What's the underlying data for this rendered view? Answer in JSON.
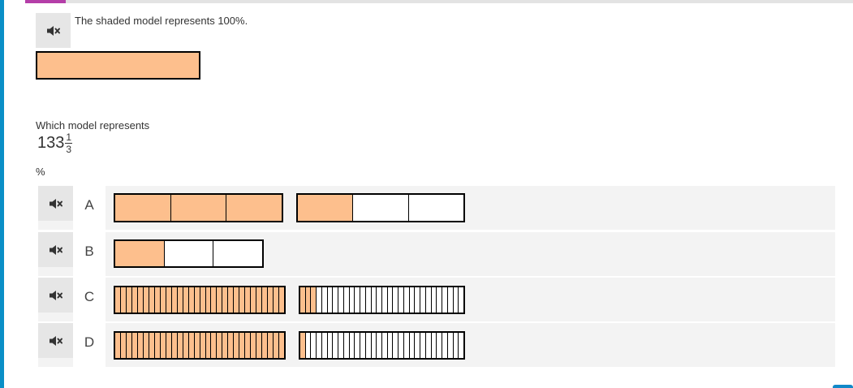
{
  "colors": {
    "shaded": "#fdbf8d",
    "accent": "#0a8fc7",
    "tab_accent": "#b43ea8"
  },
  "prompt": {
    "text": "The shaded model represents 100%.",
    "speaker_icon": "muted-speaker-icon"
  },
  "whole_model": {
    "parts": 1,
    "shaded": 1
  },
  "question": {
    "text": "Which model represents",
    "mixed_number": {
      "whole": "133",
      "numerator": "1",
      "denominator": "3"
    },
    "percent": "%"
  },
  "options": [
    {
      "letter": "A",
      "models": [
        {
          "parts": 3,
          "shaded": 3
        },
        {
          "parts": 3,
          "shaded": 1
        }
      ]
    },
    {
      "letter": "B",
      "models": [
        {
          "parts": 3,
          "shaded": 1
        }
      ]
    },
    {
      "letter": "C",
      "models": [
        {
          "parts": 30,
          "shaded": 30
        },
        {
          "parts": 30,
          "shaded": 3
        }
      ]
    },
    {
      "letter": "D",
      "models": [
        {
          "parts": 30,
          "shaded": 30
        },
        {
          "parts": 30,
          "shaded": 1
        }
      ]
    }
  ]
}
